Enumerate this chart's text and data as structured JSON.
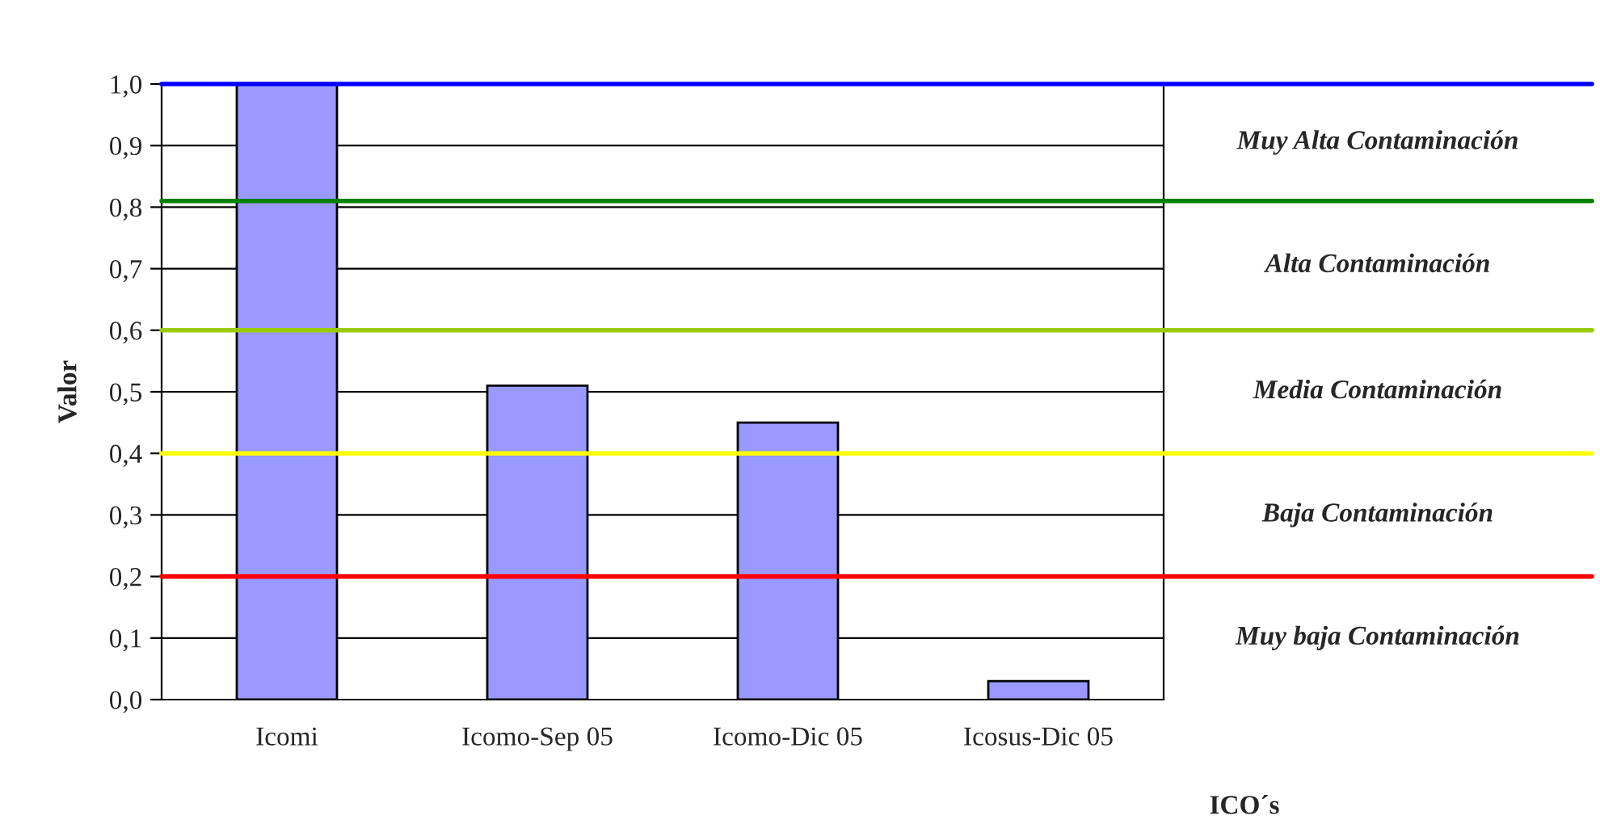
{
  "chart_data": {
    "type": "bar",
    "xlabel": "ICO´s",
    "ylabel": "Valor",
    "categories": [
      "Icomi",
      "Icomo-Sep 05",
      "Icomo-Dic 05",
      "Icosus-Dic 05"
    ],
    "values": [
      1.0,
      0.51,
      0.45,
      0.03
    ],
    "color": "#9999ff",
    "ylim": [
      0,
      1
    ],
    "yticks": [
      {
        "value": 0,
        "label": "0,0"
      },
      {
        "value": 0.1,
        "label": "0,1"
      },
      {
        "value": 0.2,
        "label": "0,2"
      },
      {
        "value": 0.3,
        "label": "0,3"
      },
      {
        "value": 0.4,
        "label": "0,4"
      },
      {
        "value": 0.5,
        "label": "0,5"
      },
      {
        "value": 0.6,
        "label": "0,6"
      },
      {
        "value": 0.7,
        "label": "0,7"
      },
      {
        "value": 0.8,
        "label": "0,8"
      },
      {
        "value": 0.9,
        "label": "0,9"
      },
      {
        "value": 1.0,
        "label": "1,0"
      }
    ],
    "grid": "y",
    "legend": false,
    "ref_lines": [
      {
        "axis": "y",
        "value": 1.0,
        "color": "#0000ff",
        "label": "Muy Alta Contaminación"
      },
      {
        "axis": "y",
        "value": 0.81,
        "color": "#008000",
        "label": "Alta Contaminación"
      },
      {
        "axis": "y",
        "value": 0.6,
        "color": "#99cc00",
        "label": "Media Contaminación"
      },
      {
        "axis": "y",
        "value": 0.4,
        "color": "#ffff00",
        "label": "Baja Contaminación"
      },
      {
        "axis": "y",
        "value": 0.2,
        "color": "#ff0000",
        "label": "Muy baja Contaminación"
      }
    ]
  }
}
